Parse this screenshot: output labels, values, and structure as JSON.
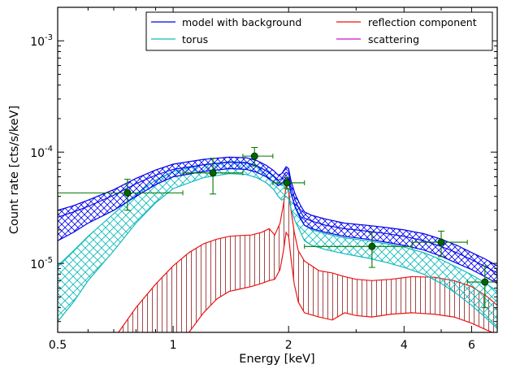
{
  "chart_data": {
    "type": "line",
    "title": "",
    "xlabel": "Energy [keV]",
    "ylabel": "Count rate [cts/s/keV]",
    "xscale": "log",
    "yscale": "log",
    "xlim": [
      0.5,
      7.0
    ],
    "ylim": [
      2.4e-06,
      0.002
    ],
    "xticks": [
      {
        "value": 0.5,
        "label": "0.5"
      },
      {
        "value": 1,
        "label": "1"
      },
      {
        "value": 2,
        "label": "2"
      },
      {
        "value": 4,
        "label": "4"
      },
      {
        "value": 6,
        "label": "6"
      }
    ],
    "yticks": [
      {
        "value": 0.001,
        "base": "10",
        "exp": "-3"
      },
      {
        "value": 0.0001,
        "base": "10",
        "exp": "-4"
      },
      {
        "value": 1e-05,
        "base": "10",
        "exp": "-5"
      }
    ],
    "legend": {
      "placement": "top-right",
      "entries": [
        {
          "label": "model with background",
          "color": "#0000ee"
        },
        {
          "label": "reflection component",
          "color": "#ee1111"
        },
        {
          "label": "torus",
          "color": "#11bbbb"
        },
        {
          "label": "scattering",
          "color": "#cc11cc"
        }
      ]
    },
    "series": [
      {
        "name": "model with background",
        "color": "#0000ee",
        "hatch_color": "#0000ee",
        "x": [
          0.5,
          0.55,
          0.6,
          0.7,
          0.8,
          0.9,
          1.0,
          1.2,
          1.4,
          1.55,
          1.65,
          1.75,
          1.83,
          1.88,
          1.92,
          1.97,
          2.0,
          2.03,
          2.08,
          2.15,
          2.2,
          2.3,
          2.5,
          2.8,
          3.2,
          3.6,
          4.0,
          4.5,
          5.0,
          5.5,
          6.0,
          6.5,
          7.0
        ],
        "upper": [
          3e-05,
          3.3e-05,
          3.7e-05,
          4.6e-05,
          5.8e-05,
          6.9e-05,
          7.8e-05,
          8.6e-05,
          9e-05,
          8.9e-05,
          8.4e-05,
          7.6e-05,
          6.8e-05,
          6.2e-05,
          6.4e-05,
          7.4e-05,
          7.1e-05,
          5.5e-05,
          4.2e-05,
          3.3e-05,
          2.9e-05,
          2.7e-05,
          2.5e-05,
          2.3e-05,
          2.2e-05,
          2.1e-05,
          2e-05,
          1.85e-05,
          1.65e-05,
          1.45e-05,
          1.25e-05,
          1.1e-05,
          9.5e-06
        ],
        "mid": [
          2.6e-05,
          2.9e-05,
          3.25e-05,
          4.1e-05,
          5.2e-05,
          6.2e-05,
          7e-05,
          7.7e-05,
          8.1e-05,
          8e-05,
          7.5e-05,
          6.8e-05,
          6.1e-05,
          5.6e-05,
          5.8e-05,
          6.6e-05,
          6.4e-05,
          4.9e-05,
          3.7e-05,
          2.9e-05,
          2.55e-05,
          2.4e-05,
          2.2e-05,
          2.05e-05,
          1.95e-05,
          1.85e-05,
          1.75e-05,
          1.6e-05,
          1.42e-05,
          1.24e-05,
          1.08e-05,
          9.4e-06,
          8.2e-06
        ],
        "lower": [
          1.6e-05,
          1.9e-05,
          2.3e-05,
          3e-05,
          4e-05,
          5.1e-05,
          6e-05,
          6.7e-05,
          7.1e-05,
          7e-05,
          6.6e-05,
          6e-05,
          5.4e-05,
          5e-05,
          5.2e-05,
          5.9e-05,
          5.7e-05,
          4.3e-05,
          3.2e-05,
          2.5e-05,
          2.2e-05,
          2.05e-05,
          1.9e-05,
          1.75e-05,
          1.65e-05,
          1.55e-05,
          1.45e-05,
          1.32e-05,
          1.16e-05,
          1e-05,
          8.8e-06,
          7.6e-06,
          6.6e-06
        ]
      },
      {
        "name": "torus",
        "color": "#11bbbb",
        "hatch_color": "#11bbbb",
        "x": [
          0.5,
          0.55,
          0.6,
          0.7,
          0.8,
          0.9,
          1.0,
          1.2,
          1.4,
          1.55,
          1.65,
          1.75,
          1.83,
          1.88,
          1.92,
          1.97,
          2.0,
          2.03,
          2.08,
          2.15,
          2.2,
          2.3,
          2.5,
          2.8,
          3.2,
          3.6,
          4.0,
          4.5,
          5.0,
          5.5,
          6.0,
          6.5,
          7.0
        ],
        "upper": [
          9.5e-06,
          1.3e-05,
          1.75e-05,
          2.8e-05,
          4.2e-05,
          5.6e-05,
          6.7e-05,
          7.7e-05,
          8.2e-05,
          8.1e-05,
          7.6e-05,
          6.8e-05,
          6e-05,
          5.3e-05,
          5e-05,
          5.5e-05,
          5.2e-05,
          4.2e-05,
          3.3e-05,
          2.6e-05,
          2.2e-05,
          2e-05,
          1.85e-05,
          1.7e-05,
          1.6e-05,
          1.5e-05,
          1.4e-05,
          1.25e-05,
          1.08e-05,
          9.2e-06,
          7.9e-06,
          6.7e-06,
          5.6e-06
        ],
        "lower": [
          3e-06,
          4.5e-06,
          7e-06,
          1.3e-05,
          2.3e-05,
          3.5e-05,
          4.7e-05,
          5.9e-05,
          6.4e-05,
          6.3e-05,
          5.9e-05,
          5.3e-05,
          4.6e-05,
          4e-05,
          3.7e-05,
          4e-05,
          3.8e-05,
          3.1e-05,
          2.4e-05,
          1.9e-05,
          1.6e-05,
          1.45e-05,
          1.33e-05,
          1.22e-05,
          1.12e-05,
          1.02e-05,
          9.2e-06,
          8e-06,
          6.6e-06,
          5.3e-06,
          4.2e-06,
          3.3e-06,
          2.6e-06
        ]
      },
      {
        "name": "reflection component",
        "color": "#ee1111",
        "hatch_color": "#993333",
        "x": [
          0.72,
          0.8,
          0.9,
          1.0,
          1.1,
          1.2,
          1.3,
          1.4,
          1.5,
          1.6,
          1.7,
          1.78,
          1.84,
          1.9,
          1.94,
          1.97,
          2.0,
          2.03,
          2.07,
          2.12,
          2.2,
          2.4,
          2.6,
          2.8,
          3.0,
          3.3,
          3.7,
          4.2,
          4.8,
          5.4,
          6.0,
          6.6,
          7.0
        ],
        "upper": [
          2.4e-06,
          4e-06,
          6.5e-06,
          9.5e-06,
          1.25e-05,
          1.5e-05,
          1.65e-05,
          1.75e-05,
          1.78e-05,
          1.8e-05,
          1.9e-05,
          2.05e-05,
          1.8e-05,
          2.3e-05,
          3.4e-05,
          4.9e-05,
          4.6e-05,
          3e-05,
          1.9e-05,
          1.3e-05,
          1.05e-05,
          8.6e-06,
          8.2e-06,
          7.6e-06,
          7.2e-06,
          7e-06,
          7.2e-06,
          7.6e-06,
          7.5e-06,
          7e-06,
          6.2e-06,
          5e-06,
          4.2e-06
        ],
        "lower": [
          null,
          null,
          null,
          null,
          2.4e-06,
          3.6e-06,
          4.8e-06,
          5.6e-06,
          5.9e-06,
          6.2e-06,
          6.6e-06,
          7e-06,
          7.2e-06,
          8.8e-06,
          1.3e-05,
          1.9e-05,
          1.75e-05,
          1.1e-05,
          6.5e-06,
          4.5e-06,
          3.6e-06,
          3.3e-06,
          3.1e-06,
          3.6e-06,
          3.4e-06,
          3.3e-06,
          3.5e-06,
          3.6e-06,
          3.5e-06,
          3.3e-06,
          2.9e-06,
          2.5e-06,
          2.3e-06
        ]
      },
      {
        "name": "scattering",
        "color": "#cc11cc",
        "x": [],
        "values": []
      }
    ],
    "data_points": {
      "name": "",
      "color": "#007700",
      "marker_fill": "#006600",
      "points": [
        {
          "x": 0.76,
          "xlo": 0.5,
          "xhi": 1.06,
          "y": 4.3e-05,
          "ylo": 3e-05,
          "yhi": 5.7e-05
        },
        {
          "x": 1.27,
          "xlo": 1.06,
          "xhi": 1.52,
          "y": 6.5e-05,
          "ylo": 4.2e-05,
          "yhi": 8.8e-05
        },
        {
          "x": 1.63,
          "xlo": 1.52,
          "xhi": 1.82,
          "y": 9.2e-05,
          "ylo": 7.5e-05,
          "yhi": 0.00011
        },
        {
          "x": 1.98,
          "xlo": 1.82,
          "xhi": 2.2,
          "y": 5.3e-05,
          "ylo": 4.7e-05,
          "yhi": 5.9e-05
        },
        {
          "x": 3.3,
          "xlo": 2.2,
          "xhi": 4.2,
          "y": 1.42e-05,
          "ylo": 9.2e-06,
          "yhi": 1.9e-05
        },
        {
          "x": 5.0,
          "xlo": 4.2,
          "xhi": 5.85,
          "y": 1.55e-05,
          "ylo": 1.15e-05,
          "yhi": 1.95e-05
        },
        {
          "x": 6.5,
          "xlo": 5.85,
          "xhi": 7.0,
          "y": 6.8e-06,
          "ylo": 4e-06,
          "yhi": 9.5e-06
        }
      ]
    }
  }
}
